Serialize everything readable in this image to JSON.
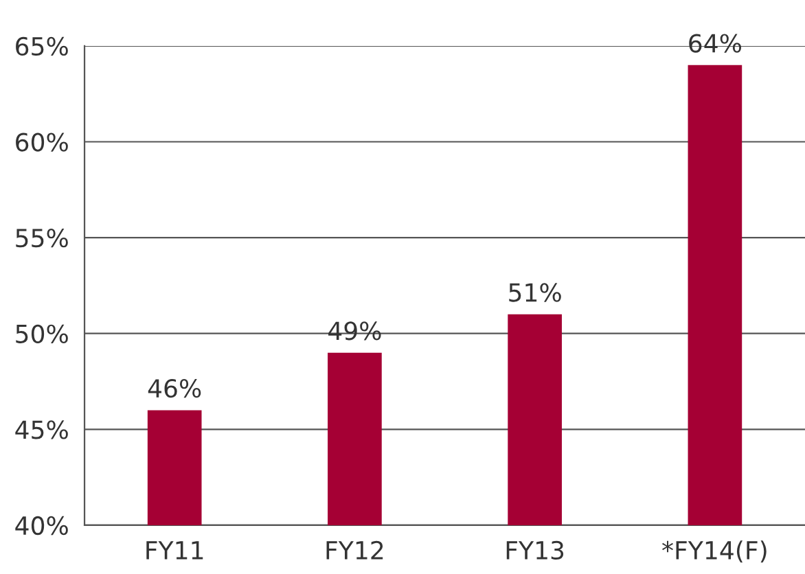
{
  "chart_data": {
    "type": "bar",
    "categories": [
      "FY11",
      "FY12",
      "FY13",
      "*FY14(F)"
    ],
    "values": [
      46,
      49,
      51,
      64
    ],
    "color": "#a50034",
    "value_labels": [
      "46%",
      "49%",
      "51%",
      "64%"
    ],
    "ylim": [
      40,
      65
    ],
    "yticks": [
      {
        "value": 40,
        "label": "40%"
      },
      {
        "value": 45,
        "label": "45%"
      },
      {
        "value": 50,
        "label": "50%"
      },
      {
        "value": 55,
        "label": "55%"
      },
      {
        "value": 60,
        "label": "60%"
      },
      {
        "value": 65,
        "label": "65%"
      }
    ],
    "grid": "y"
  }
}
